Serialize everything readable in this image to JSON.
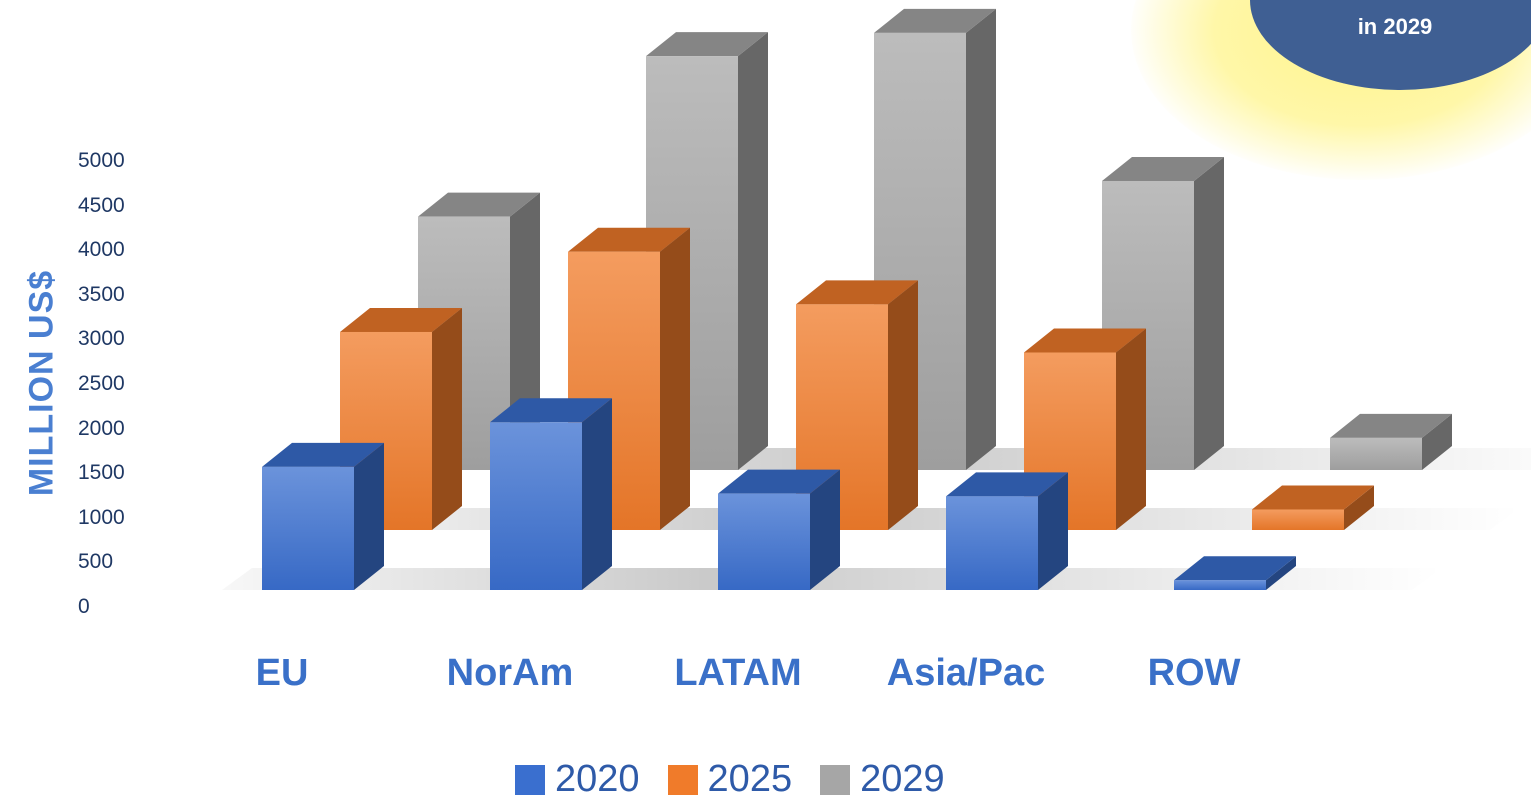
{
  "badge": {
    "text": "in 2029"
  },
  "chart_data": {
    "type": "bar",
    "title": "",
    "xlabel": "",
    "ylabel": "MILLION US$",
    "ylim": [
      0,
      5000
    ],
    "yticks": [
      "5000",
      "4500",
      "4000",
      "3500",
      "3000",
      "2500",
      "2000",
      "1500",
      "1000",
      "500",
      "0"
    ],
    "categories": [
      "EU",
      "NorAm",
      "LATAM",
      "Asia/Pac",
      "ROW"
    ],
    "series": [
      {
        "name": "2020",
        "color": "#3a6fcf",
        "values": [
          1380,
          1880,
          1080,
          1050,
          110
        ]
      },
      {
        "name": "2025",
        "color": "#f07b2a",
        "values": [
          2220,
          3120,
          2530,
          1990,
          230
        ]
      },
      {
        "name": "2029",
        "color": "#a6a6a6",
        "values": [
          2840,
          4640,
          4900,
          3240,
          360
        ]
      }
    ],
    "legend": "bottom",
    "grid": false
  }
}
